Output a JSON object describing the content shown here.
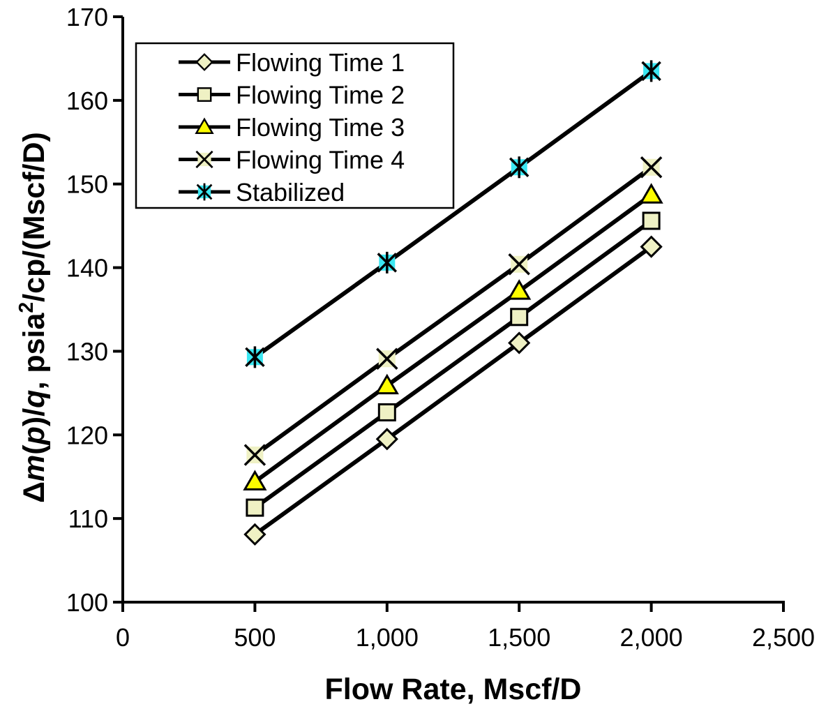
{
  "chart_data": {
    "type": "line",
    "title": "",
    "xlabel": "Flow Rate, Mscf/D",
    "ylabel": "Δm(p)/q, psia²/cp/(Mscf/D)",
    "ylabel_rich": [
      {
        "t": "Δ"
      },
      {
        "t": "m",
        "i": true
      },
      {
        "t": "("
      },
      {
        "t": "p",
        "i": true
      },
      {
        "t": ")/"
      },
      {
        "t": "q",
        "i": true
      },
      {
        "t": ", psia"
      },
      {
        "t": "2",
        "sup": true
      },
      {
        "t": "/cp/(Mscf/D)"
      }
    ],
    "x": [
      500,
      1000,
      1500,
      2000
    ],
    "xlim": [
      0,
      2500
    ],
    "ylim": [
      100,
      170
    ],
    "x_ticks": [
      0,
      500,
      1000,
      1500,
      2000,
      2500
    ],
    "x_tick_labels": [
      "0",
      "500",
      "1,000",
      "1,500",
      "2,000",
      "2,500"
    ],
    "y_ticks": [
      100,
      110,
      120,
      130,
      140,
      150,
      160,
      170
    ],
    "y_tick_labels": [
      "100",
      "110",
      "120",
      "130",
      "140",
      "150",
      "160",
      "170"
    ],
    "grid": false,
    "legend_position": "top-left-inside",
    "line_color": "#000000",
    "axis_color": "#000000",
    "series": [
      {
        "name": "Flowing Time 1",
        "marker": "diamond",
        "fill": "#EFF1C4",
        "values": [
          108.1,
          119.5,
          131.0,
          142.5
        ]
      },
      {
        "name": "Flowing Time 2",
        "marker": "square",
        "fill": "#EFF1C4",
        "values": [
          111.3,
          122.7,
          134.1,
          145.6
        ]
      },
      {
        "name": "Flowing Time 3",
        "marker": "triangle",
        "fill": "#FCFC00",
        "values": [
          114.4,
          125.9,
          137.2,
          148.7
        ]
      },
      {
        "name": "Flowing Time 4",
        "marker": "x",
        "fill": "#EFF1C4",
        "values": [
          117.6,
          129.1,
          140.4,
          152.0
        ]
      },
      {
        "name": "Stabilized",
        "marker": "asterisk",
        "fill": "#3BE7F2",
        "values": [
          129.3,
          140.6,
          152.0,
          163.5
        ]
      }
    ]
  }
}
